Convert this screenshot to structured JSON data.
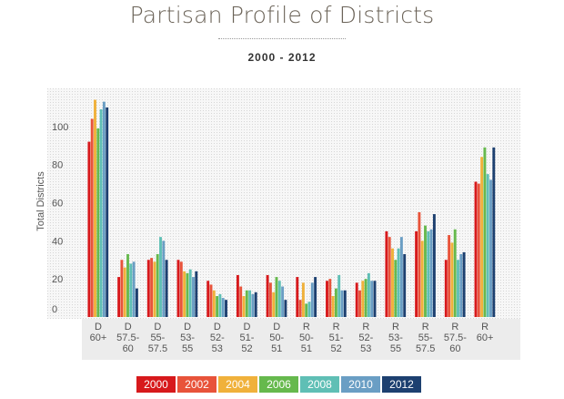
{
  "chart_data": {
    "type": "bar",
    "title": "Partisan Profile of Districts",
    "subtitle": "2000 - 2012",
    "ylabel": "Total Districts",
    "xlabel": "",
    "ylim": [
      0,
      120
    ],
    "yticks": [
      0,
      20,
      40,
      60,
      80,
      100
    ],
    "grid": true,
    "legend_position": "bottom",
    "categories": [
      [
        "D",
        "60+"
      ],
      [
        "D",
        "57.5-",
        "60"
      ],
      [
        "D",
        "55-",
        "57.5"
      ],
      [
        "D",
        "53-",
        "55"
      ],
      [
        "D",
        "52-",
        "53"
      ],
      [
        "D",
        "51-",
        "52"
      ],
      [
        "D",
        "50-",
        "51"
      ],
      [
        "R",
        "50-",
        "51"
      ],
      [
        "R",
        "51-",
        "52"
      ],
      [
        "R",
        "52-",
        "53"
      ],
      [
        "R",
        "53-",
        "55"
      ],
      [
        "R",
        "55-",
        "57.5"
      ],
      [
        "R",
        "57.5-",
        "60"
      ],
      [
        "R",
        "60+"
      ]
    ],
    "series": [
      {
        "name": "2000",
        "color": "#d7191c",
        "values": [
          92,
          21,
          30,
          30,
          19,
          22,
          22,
          21,
          19,
          18,
          45,
          45,
          30,
          71
        ]
      },
      {
        "name": "2002",
        "color": "#e8533a",
        "values": [
          104,
          30,
          31,
          29,
          17,
          16,
          18,
          9,
          20,
          14,
          42,
          55,
          43,
          70
        ]
      },
      {
        "name": "2004",
        "color": "#f0b13b",
        "values": [
          114,
          26,
          29,
          24,
          14,
          11,
          13,
          18,
          11,
          19,
          36,
          40,
          39,
          84
        ]
      },
      {
        "name": "2006",
        "color": "#66b94d",
        "values": [
          99,
          33,
          33,
          23,
          11,
          14,
          21,
          7,
          15,
          20,
          30,
          48,
          46,
          89
        ]
      },
      {
        "name": "2008",
        "color": "#5fbfb5",
        "values": [
          109,
          28,
          42,
          25,
          12,
          14,
          19,
          8,
          22,
          23,
          36,
          45,
          30,
          75
        ]
      },
      {
        "name": "2010",
        "color": "#6a9ec4",
        "values": [
          113,
          29,
          40,
          21,
          10,
          12,
          16,
          18,
          14,
          19,
          42,
          46,
          33,
          72
        ]
      },
      {
        "name": "2012",
        "color": "#1d4070",
        "values": [
          110,
          15,
          30,
          24,
          9,
          13,
          9,
          21,
          14,
          19,
          33,
          54,
          34,
          89
        ]
      }
    ]
  }
}
